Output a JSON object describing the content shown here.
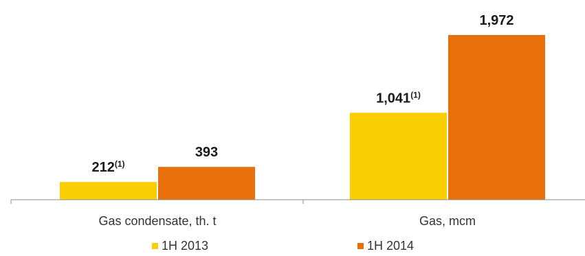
{
  "chart_data": {
    "type": "bar",
    "categories": [
      "Gas condensate, th. t",
      "Gas, mcm"
    ],
    "series": [
      {
        "name": "1H 2013",
        "color": "#FACE00",
        "values": [
          212,
          1041
        ],
        "labels": [
          "212",
          "1,041"
        ],
        "note": "(1)"
      },
      {
        "name": "1H 2014",
        "color": "#E8700A",
        "values": [
          393,
          1972
        ],
        "labels": [
          "393",
          "1,972"
        ],
        "note": ""
      }
    ],
    "axis_color": "#8c8c8c",
    "grid": false,
    "legend": "bottom-center"
  }
}
